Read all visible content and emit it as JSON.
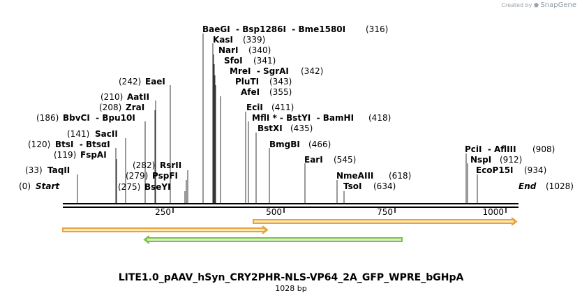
{
  "credit": {
    "prefix": "Created by",
    "brand": "SnapGene"
  },
  "title": "LITE1.0_pAAV_hSyn_CRY2PHR-NLS-VP64_2A_GFP_WPRE_bGHpA",
  "length_label": "1028 bp",
  "sequence_length": 1028,
  "ticks": [
    "250",
    "500",
    "750",
    "1000"
  ],
  "sites": [
    {
      "name": "Start",
      "pos": "(0)"
    },
    {
      "name": "TaqII",
      "pos": "(33)"
    },
    {
      "name": "BtsI  - BtsαI",
      "pos": "(120)"
    },
    {
      "name": "FspAI",
      "pos": "(119)"
    },
    {
      "name": "SacII",
      "pos": "(141)"
    },
    {
      "name": "BbvCI  - Bpu10I",
      "pos": "(186)"
    },
    {
      "name": "ZraI",
      "pos": "(208)"
    },
    {
      "name": "AatII",
      "pos": "(210)"
    },
    {
      "name": "EaeI",
      "pos": "(242)"
    },
    {
      "name": "BseYI",
      "pos": "(275)"
    },
    {
      "name": "PspFI",
      "pos": "(279)"
    },
    {
      "name": "RsrII",
      "pos": "(282)"
    },
    {
      "name": "BaeGI  - Bsp1286I  - Bme1580I",
      "pos": "(316)"
    },
    {
      "name": "KasI",
      "pos": "(339)"
    },
    {
      "name": "NarI",
      "pos": "(340)"
    },
    {
      "name": "SfoI",
      "pos": "(341)"
    },
    {
      "name": "MreI  - SgrAI",
      "pos": "(342)"
    },
    {
      "name": "PluTI",
      "pos": "(343)"
    },
    {
      "name": "AfeI",
      "pos": "(355)"
    },
    {
      "name": "EciI",
      "pos": "(411)"
    },
    {
      "name": "MflI * - BstYI  - BamHI",
      "pos": "(418)"
    },
    {
      "name": "BstXI",
      "pos": "(435)"
    },
    {
      "name": "BmgBI",
      "pos": "(466)"
    },
    {
      "name": "EarI",
      "pos": "(545)"
    },
    {
      "name": "NmeAIII",
      "pos": "(618)"
    },
    {
      "name": "TsoI",
      "pos": "(634)"
    },
    {
      "name": "PciI  - AflIII",
      "pos": "(908)"
    },
    {
      "name": "NspI",
      "pos": "(912)"
    },
    {
      "name": "EcoP15I",
      "pos": "(934)"
    },
    {
      "name": "End",
      "pos": "(1028)"
    }
  ],
  "features": [
    {
      "name": "orange-forward-feature",
      "start": 1,
      "end": 457,
      "direction": "forward",
      "color": "#e8a33c",
      "fill": "#fde8b8"
    },
    {
      "name": "orange-forward-feature",
      "start": 431,
      "end": 1028,
      "direction": "forward",
      "color": "#e8a33c",
      "fill": "#fde8b8"
    },
    {
      "name": "green-reverse-feature",
      "start": 188,
      "end": 770,
      "direction": "reverse",
      "color": "#7dc243",
      "fill": "#d8f0c4"
    }
  ],
  "colors": {
    "backbone": "#000000",
    "site_line": "#000000"
  }
}
